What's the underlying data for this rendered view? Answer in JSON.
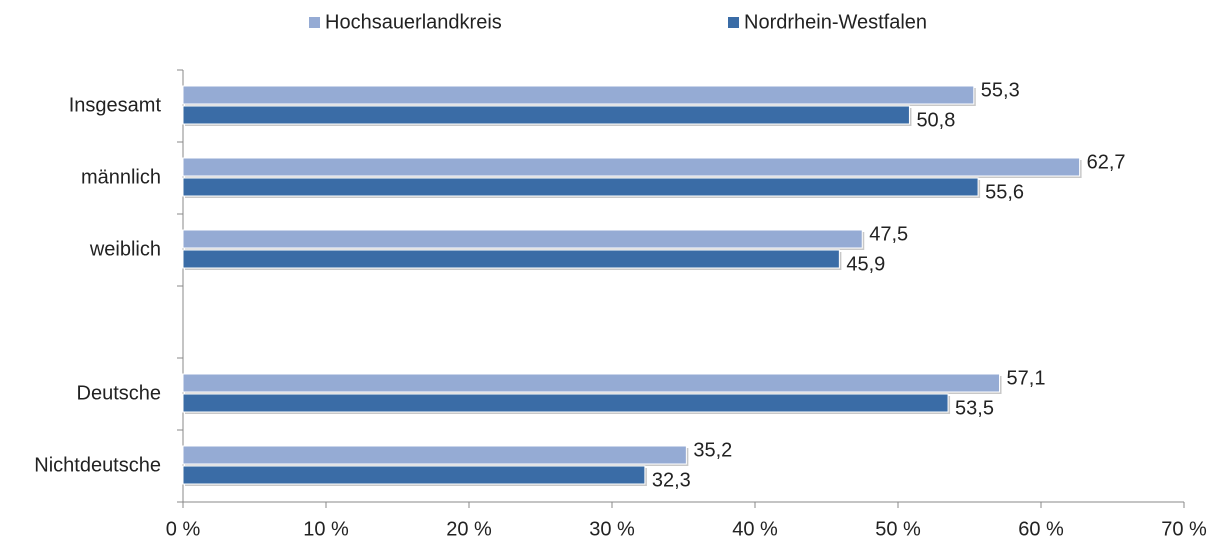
{
  "chart_data": {
    "type": "bar",
    "orientation": "horizontal",
    "categories": [
      "Insgesamt",
      "männlich",
      "weiblich",
      null,
      "Deutsche",
      "Nichtdeutsche"
    ],
    "series": [
      {
        "name": "Hochsauerlandkreis",
        "color": "#95abd4",
        "values": [
          55.3,
          62.7,
          47.5,
          null,
          57.1,
          35.2
        ],
        "value_labels": [
          "55,3",
          "62,7",
          "47,5",
          null,
          "57,1",
          "35,2"
        ]
      },
      {
        "name": "Nordrhein-Westfalen",
        "color": "#3a6ca6",
        "values": [
          50.8,
          55.6,
          45.9,
          null,
          53.5,
          32.3
        ],
        "value_labels": [
          "50,8",
          "55,6",
          "45,9",
          null,
          "53,5",
          "32,3"
        ]
      }
    ],
    "xlim": [
      0,
      70
    ],
    "xticks": [
      {
        "value": 0,
        "label": "0 %"
      },
      {
        "value": 10,
        "label": "10 %"
      },
      {
        "value": 20,
        "label": "20 %"
      },
      {
        "value": 30,
        "label": "30 %"
      },
      {
        "value": 40,
        "label": "40 %"
      },
      {
        "value": 50,
        "label": "50 %"
      },
      {
        "value": 60,
        "label": "60 %"
      },
      {
        "value": 70,
        "label": "70 %"
      }
    ],
    "legend": "top"
  }
}
